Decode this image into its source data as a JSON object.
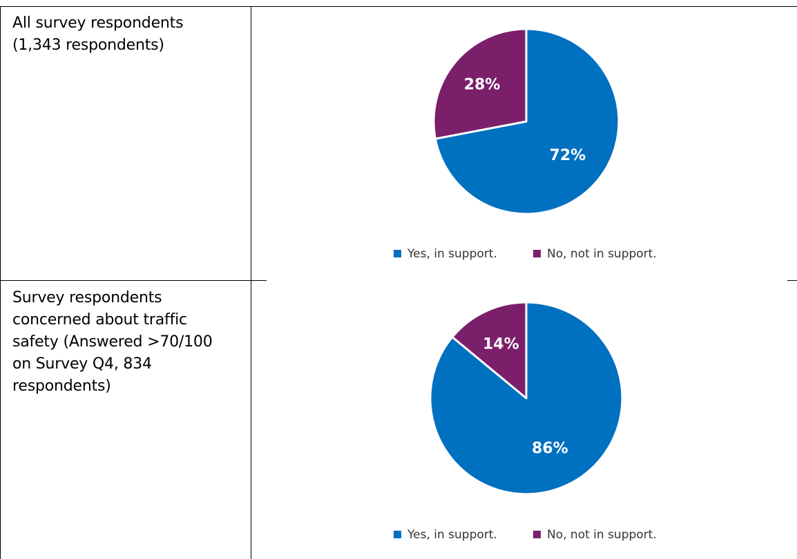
{
  "rows": [
    {
      "label_lines": [
        "All survey respondents",
        "(1,343 respondents)"
      ]
    },
    {
      "label_lines": [
        "Survey respondents",
        "concerned about traffic",
        "safety (Answered >70/100",
        "on Survey Q4, 834",
        "respondents)"
      ]
    }
  ],
  "colors": {
    "yes": "#0070C0",
    "no": "#7B1F6B"
  },
  "chart_data": [
    {
      "type": "pie",
      "slices": [
        {
          "name": "Yes, in support.",
          "value": 72,
          "label": "72%",
          "color": "#0070C0"
        },
        {
          "name": "No, not in support.",
          "value": 28,
          "label": "28%",
          "color": "#7B1F6B"
        }
      ],
      "legend": {
        "placement": "bottom",
        "items": [
          "Yes, in support.",
          "No, not in support."
        ]
      }
    },
    {
      "type": "pie",
      "slices": [
        {
          "name": "Yes, in support.",
          "value": 86,
          "label": "86%",
          "color": "#0070C0"
        },
        {
          "name": "No, not in support.",
          "value": 14,
          "label": "14%",
          "color": "#7B1F6B"
        }
      ],
      "legend": {
        "placement": "bottom",
        "items": [
          "Yes, in support.",
          "No, not in support."
        ]
      }
    }
  ]
}
